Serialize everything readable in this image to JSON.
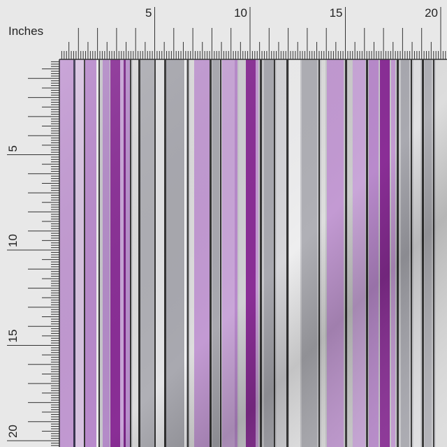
{
  "ruler": {
    "unit_label": "Inches",
    "top_labels": [
      5,
      10,
      15,
      20
    ],
    "left_labels": [
      5,
      10,
      15,
      20
    ]
  }
}
